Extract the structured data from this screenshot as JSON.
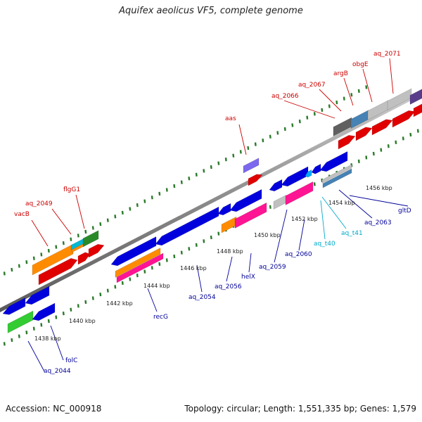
{
  "title": "Aquifex aeolicus VF5, complete genome",
  "footer": {
    "accession": "Accession: NC_000918",
    "summary": "Topology: circular; Length: 1,551,335 bp; Genes: 1,579"
  },
  "kbp_labels": [
    "1438 kbp",
    "1440 kbp",
    "1442 kbp",
    "1444 kbp",
    "1446 kbp",
    "1448 kbp",
    "1450 kbp",
    "1452 kbp",
    "1454 kbp",
    "1456 kbp"
  ],
  "gene_labels_top": [
    "vacB",
    "aq_2049",
    "flgG1",
    "aas",
    "aq_2066",
    "aq_2067",
    "argB",
    "obgE",
    "aq_2071"
  ],
  "gene_labels_bottom": [
    "aq_2044",
    "folC",
    "recG",
    "aq_2054",
    "aq_2056",
    "helX",
    "aq_2059",
    "aq_2060",
    "aq_t40",
    "aq_t41",
    "aq_2063",
    "gltD"
  ],
  "colors": {
    "label_top": "#cc0000",
    "label_bottom": "#000099",
    "label_trna": "#00aacc",
    "track_line": "#888888",
    "tick": "#2a7a2a"
  }
}
